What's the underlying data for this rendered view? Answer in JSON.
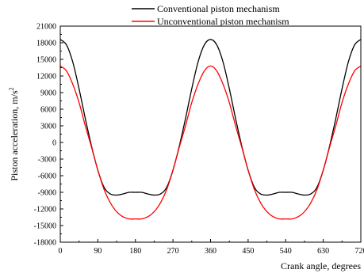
{
  "chart_data": {
    "type": "line",
    "xlabel": "Crank angle, degrees",
    "ylabel": "Piston acceleration, m/s",
    "ylabel_sup": "2",
    "xlim": [
      0,
      720
    ],
    "ylim": [
      -18000,
      21000
    ],
    "xticks": [
      0,
      90,
      180,
      270,
      360,
      450,
      540,
      630,
      720
    ],
    "yticks": [
      -18000,
      -15000,
      -12000,
      -9000,
      -6000,
      -3000,
      0,
      3000,
      6000,
      9000,
      12000,
      15000,
      18000,
      21000
    ],
    "legend_position": "top",
    "grid": false,
    "series": [
      {
        "name": "Conventional piston mechanism",
        "color": "#000000",
        "x": [
          0,
          15,
          30,
          45,
          60,
          75,
          90,
          105,
          120,
          135,
          150,
          165,
          180,
          195,
          210,
          225,
          240,
          255,
          270,
          285,
          300,
          315,
          330,
          345,
          360,
          375,
          390,
          405,
          420,
          435,
          450,
          465,
          480,
          495,
          510,
          525,
          540,
          555,
          570,
          585,
          600,
          615,
          630,
          645,
          660,
          675,
          690,
          705,
          720
        ],
        "y": [
          18600,
          17600,
          14500,
          9700,
          4300,
          -700,
          -5000,
          -8100,
          -9300,
          -9500,
          -9300,
          -9000,
          -9000,
          -9000,
          -9300,
          -9500,
          -9300,
          -8100,
          -5000,
          -700,
          4300,
          9700,
          14500,
          17600,
          18600,
          17600,
          14500,
          9700,
          4300,
          -700,
          -5000,
          -8100,
          -9300,
          -9500,
          -9300,
          -9000,
          -9000,
          -9000,
          -9300,
          -9500,
          -9300,
          -8100,
          -5000,
          -700,
          4300,
          9700,
          14500,
          17600,
          18600
        ]
      },
      {
        "name": "Unconventional piston mechanism",
        "color": "#ff0000",
        "x": [
          0,
          15,
          30,
          45,
          60,
          75,
          90,
          105,
          120,
          135,
          150,
          165,
          180,
          195,
          210,
          225,
          240,
          255,
          270,
          285,
          300,
          315,
          330,
          345,
          360,
          375,
          390,
          405,
          420,
          435,
          450,
          465,
          480,
          495,
          510,
          525,
          540,
          555,
          570,
          585,
          600,
          615,
          630,
          645,
          660,
          675,
          690,
          705,
          720
        ],
        "y": [
          13800,
          12900,
          10500,
          7200,
          3000,
          -900,
          -5000,
          -8500,
          -10900,
          -12500,
          -13400,
          -13800,
          -13800,
          -13800,
          -13400,
          -12500,
          -10900,
          -8500,
          -5000,
          -900,
          3000,
          7200,
          10500,
          12900,
          13800,
          12900,
          10500,
          7200,
          3000,
          -900,
          -5000,
          -8500,
          -10900,
          -12500,
          -13400,
          -13800,
          -13800,
          -13800,
          -13400,
          -12500,
          -10900,
          -8500,
          -5000,
          -900,
          3000,
          7200,
          10500,
          12900,
          13800
        ]
      }
    ]
  }
}
